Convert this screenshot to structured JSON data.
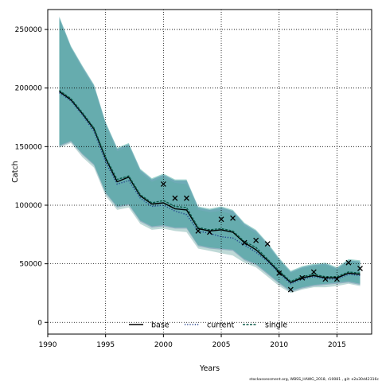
{
  "chart_data": {
    "type": "line",
    "xlabel": "Years",
    "ylabel": "Catch",
    "xlim": [
      1990,
      2018
    ],
    "ylim": [
      -10000,
      267000
    ],
    "xticks": [
      1990,
      1995,
      2000,
      2005,
      2010,
      2015
    ],
    "yticks": [
      0,
      50000,
      100000,
      150000,
      200000,
      250000
    ],
    "grid": true,
    "legend_position": "bottom-center",
    "x": [
      1991,
      1992,
      1993,
      1994,
      1995,
      1996,
      1997,
      1998,
      1999,
      2000,
      2001,
      2002,
      2003,
      2004,
      2005,
      2006,
      2007,
      2008,
      2009,
      2010,
      2011,
      2012,
      2013,
      2014,
      2015,
      2016,
      2017
    ],
    "series": [
      {
        "name": "base",
        "style": "solid",
        "color": "#000000",
        "values": [
          197000,
          190000,
          178000,
          165000,
          140000,
          120000,
          124000,
          108000,
          101000,
          102000,
          97000,
          96000,
          80000,
          78000,
          79000,
          77000,
          68000,
          62000,
          53000,
          43000,
          34000,
          38000,
          40000,
          38000,
          38000,
          42000,
          41000
        ],
        "band_lower": [
          150000,
          154000,
          143000,
          134000,
          110000,
          98000,
          100000,
          86000,
          81000,
          82000,
          80000,
          80000,
          65000,
          63000,
          62000,
          61000,
          53000,
          49000,
          41000,
          33000,
          26000,
          29000,
          31000,
          32000,
          33000,
          34000,
          32000
        ],
        "band_upper": [
          260000,
          235000,
          218000,
          202000,
          170000,
          148000,
          152000,
          130000,
          122000,
          126000,
          121000,
          121000,
          98000,
          96000,
          98000,
          95000,
          84000,
          78000,
          67000,
          54000,
          43000,
          47000,
          49000,
          50000,
          46000,
          53000,
          52000
        ],
        "band_color": "#5b6fb0"
      },
      {
        "name": "current",
        "style": "dotted",
        "color": "#1f3d8a",
        "values": [
          196000,
          189000,
          177000,
          163000,
          137000,
          118000,
          121000,
          106000,
          99000,
          100000,
          95000,
          92000,
          78000,
          76000,
          73000,
          72000,
          66000,
          60000,
          52000,
          42000,
          33000,
          37000,
          39000,
          37000,
          37000,
          41000,
          40000
        ],
        "band_lower": [
          149000,
          153000,
          141000,
          132000,
          108000,
          96000,
          98000,
          84000,
          79000,
          80000,
          78000,
          77000,
          63000,
          61000,
          59000,
          57000,
          51000,
          47000,
          39000,
          31000,
          25000,
          28000,
          30000,
          30000,
          31000,
          33000,
          31000
        ],
        "band_upper": [
          258000,
          234000,
          216000,
          200000,
          168000,
          146000,
          150000,
          128000,
          120000,
          124000,
          119000,
          118000,
          96000,
          94000,
          95000,
          92000,
          82000,
          76000,
          65000,
          53000,
          42000,
          46000,
          48000,
          49000,
          45000,
          52000,
          51000
        ],
        "band_color": "#7fb3b0"
      },
      {
        "name": "single",
        "style": "dashed",
        "color": "#0d5c4a",
        "values": [
          198000,
          191000,
          179000,
          166000,
          141000,
          122000,
          125000,
          109000,
          102000,
          104000,
          99000,
          98000,
          81000,
          79000,
          80000,
          78000,
          69000,
          64000,
          54000,
          44000,
          35000,
          39000,
          41000,
          39000,
          39000,
          43000,
          42000
        ],
        "band_lower": [
          151000,
          155000,
          144000,
          135000,
          111000,
          99000,
          101000,
          87000,
          82000,
          83000,
          81000,
          81000,
          66000,
          64000,
          63000,
          62000,
          54000,
          50000,
          42000,
          34000,
          27000,
          30000,
          32000,
          33000,
          34000,
          35000,
          33000
        ],
        "band_upper": [
          261000,
          236000,
          219000,
          203000,
          171000,
          149000,
          153000,
          131000,
          123000,
          127000,
          122000,
          122000,
          99000,
          97000,
          99000,
          96000,
          85000,
          79000,
          68000,
          55000,
          44000,
          48000,
          50000,
          51000,
          47000,
          54000,
          53000
        ],
        "band_color": "#3aa59a"
      }
    ],
    "observations": {
      "marker": "x",
      "x": [
        2000,
        2001,
        2002,
        2003,
        2004,
        2005,
        2006,
        2007,
        2008,
        2009,
        2010,
        2011,
        2012,
        2013,
        2014,
        2015,
        2016,
        2017
      ],
      "values": [
        118000,
        106000,
        106000,
        78000,
        77000,
        88000,
        89000,
        68000,
        70000,
        67000,
        42000,
        28000,
        38000,
        43000,
        37000,
        37000,
        51000,
        46000
      ]
    }
  },
  "footer": {
    "text": "stockassessment.org, WBSS_HAWG_2018, r10081 , git: e2a30d42316c"
  }
}
